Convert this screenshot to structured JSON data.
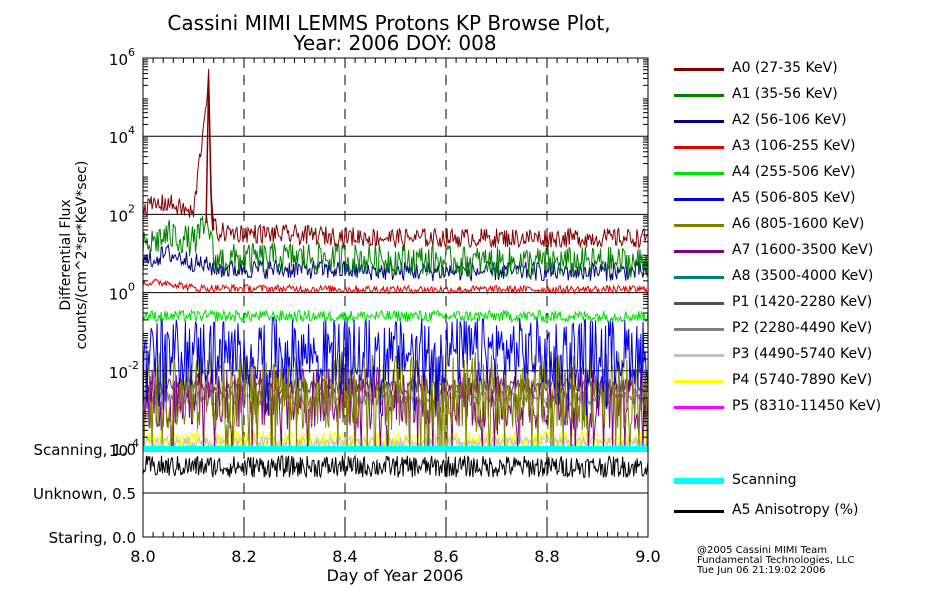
{
  "chart_data": {
    "type": "line",
    "title_line1": "Cassini MIMI LEMMS Protons KP Browse Plot,",
    "title_line2": "Year: 2006 DOY: 008",
    "ylabel_line1": "Differential Flux",
    "ylabel_line2": "counts/(cm^2*sr*KeV*sec)",
    "xlabel": "Day of Year 2006",
    "x_ticks": [
      "8.0",
      "8.2",
      "8.4",
      "8.6",
      "8.8",
      "9.0"
    ],
    "xlim": [
      8.0,
      9.0
    ],
    "y_scale": "log",
    "ylim": [
      0.0001,
      1000000
    ],
    "y_ticks": [
      {
        "base": "10",
        "exp": "-4",
        "value": 0.0001
      },
      {
        "base": "10",
        "exp": "-2",
        "value": 0.01
      },
      {
        "base": "10",
        "exp": "0",
        "value": 1
      },
      {
        "base": "10",
        "exp": "2",
        "value": 100
      },
      {
        "base": "10",
        "exp": "4",
        "value": 10000
      },
      {
        "base": "10",
        "exp": "6",
        "value": 1000000
      }
    ],
    "grid": true,
    "legend_position": "right",
    "series": [
      {
        "name": "A0 (27-35 KeV)",
        "color": "#800000",
        "level": 25,
        "x": [
          8.0,
          8.05,
          8.1,
          8.13,
          8.135,
          8.15,
          8.3,
          8.5,
          8.7,
          9.0
        ],
        "y": [
          150,
          200,
          100,
          300000,
          60,
          35,
          30,
          25,
          25,
          25
        ]
      },
      {
        "name": "A1 (35-56 KeV)",
        "color": "#008000",
        "level": 8,
        "x": [
          8.0,
          8.05,
          8.1,
          8.13,
          8.14,
          8.3,
          8.5,
          8.7,
          9.0
        ],
        "y": [
          15,
          30,
          20,
          60,
          7,
          8,
          7,
          6,
          6
        ]
      },
      {
        "name": "A2 (56-106 KeV)",
        "color": "#000080",
        "level": 4,
        "x": [
          8.0,
          8.05,
          8.1,
          8.15,
          8.3,
          8.5,
          8.7,
          9.0
        ],
        "y": [
          6,
          10,
          6,
          4,
          4,
          3.5,
          3.5,
          3.5
        ]
      },
      {
        "name": "A3 (106-255 KeV)",
        "color": "#e00000",
        "level": 1.3,
        "x": [
          8.0,
          8.05,
          8.1,
          8.5,
          9.0
        ],
        "y": [
          1.8,
          1.8,
          1.3,
          1.2,
          1.2
        ]
      },
      {
        "name": "A4 (255-506 KeV)",
        "color": "#00e000",
        "level": 0.25,
        "x": [
          8.0,
          8.5,
          9.0
        ],
        "y": [
          0.25,
          0.25,
          0.25
        ]
      },
      {
        "name": "A5 (506-805 KeV)",
        "color": "#0000e0",
        "level": 0.03,
        "x": [
          8.0,
          8.5,
          9.0
        ],
        "y": [
          0.03,
          0.03,
          0.03
        ]
      },
      {
        "name": "A6 (805-1600 KeV)",
        "color": "#808000",
        "level": 0.003,
        "x": [
          8.0,
          8.5,
          9.0
        ],
        "y": [
          0.003,
          0.003,
          0.003
        ]
      },
      {
        "name": "A7 (1600-3500 KeV)",
        "color": "#800080",
        "level": 0.002,
        "x": [
          8.0,
          8.5,
          9.0
        ],
        "y": [
          0.002,
          0.002,
          0.002
        ]
      },
      {
        "name": "A8 (3500-4000 KeV)",
        "color": "#008080",
        "level": 0.0001,
        "x": [
          8.0,
          9.0
        ],
        "y": [
          0.0001,
          0.0001
        ]
      },
      {
        "name": "P1 (1420-2280 KeV)",
        "color": "#505050",
        "level": 0.004,
        "x": [
          8.0,
          8.5,
          9.0
        ],
        "y": [
          0.004,
          0.004,
          0.004
        ]
      },
      {
        "name": "P2 (2280-4490 KeV)",
        "color": "#808080",
        "level": 0.002,
        "x": [
          8.0,
          8.5,
          9.0
        ],
        "y": [
          0.002,
          0.002,
          0.002
        ]
      },
      {
        "name": "P3 (4490-5740 KeV)",
        "color": "#c0c0c0",
        "level": 0.00015,
        "x": [
          8.0,
          9.0
        ],
        "y": [
          0.00015,
          0.00015
        ]
      },
      {
        "name": "P4 (5740-7890 KeV)",
        "color": "#ffff00",
        "level": 0.00015,
        "x": [
          8.0,
          9.0
        ],
        "y": [
          0.00015,
          0.00015
        ]
      },
      {
        "name": "P5 (8310-11450 KeV)",
        "color": "#ff00ff",
        "level": 0.0001,
        "x": [
          8.0,
          9.0
        ],
        "y": [
          0.0001,
          0.0001
        ]
      }
    ],
    "sub_panel": {
      "y_ticks": [
        {
          "label": "Scanning, 1.0",
          "value": 1.0
        },
        {
          "label": "Unknown, 0.5",
          "value": 0.5
        },
        {
          "label": "Staring, 0.0",
          "value": 0.0
        }
      ],
      "ylim": [
        0.0,
        1.0
      ],
      "series": [
        {
          "name": "Scanning",
          "color": "#00ffff",
          "x": [
            8.0,
            9.0
          ],
          "y": [
            1.0,
            1.0
          ]
        },
        {
          "name": "A5 Anisotropy (%)",
          "color": "#000000",
          "x": [
            8.0,
            8.5,
            9.0
          ],
          "y": [
            0.8,
            0.8,
            0.8
          ]
        }
      ]
    }
  },
  "footer": {
    "line1": "@2005 Cassini MIMI Team",
    "line2": "Fundamental Technologies, LLC",
    "line3": "Tue Jun 06 21:19:02 2006"
  }
}
